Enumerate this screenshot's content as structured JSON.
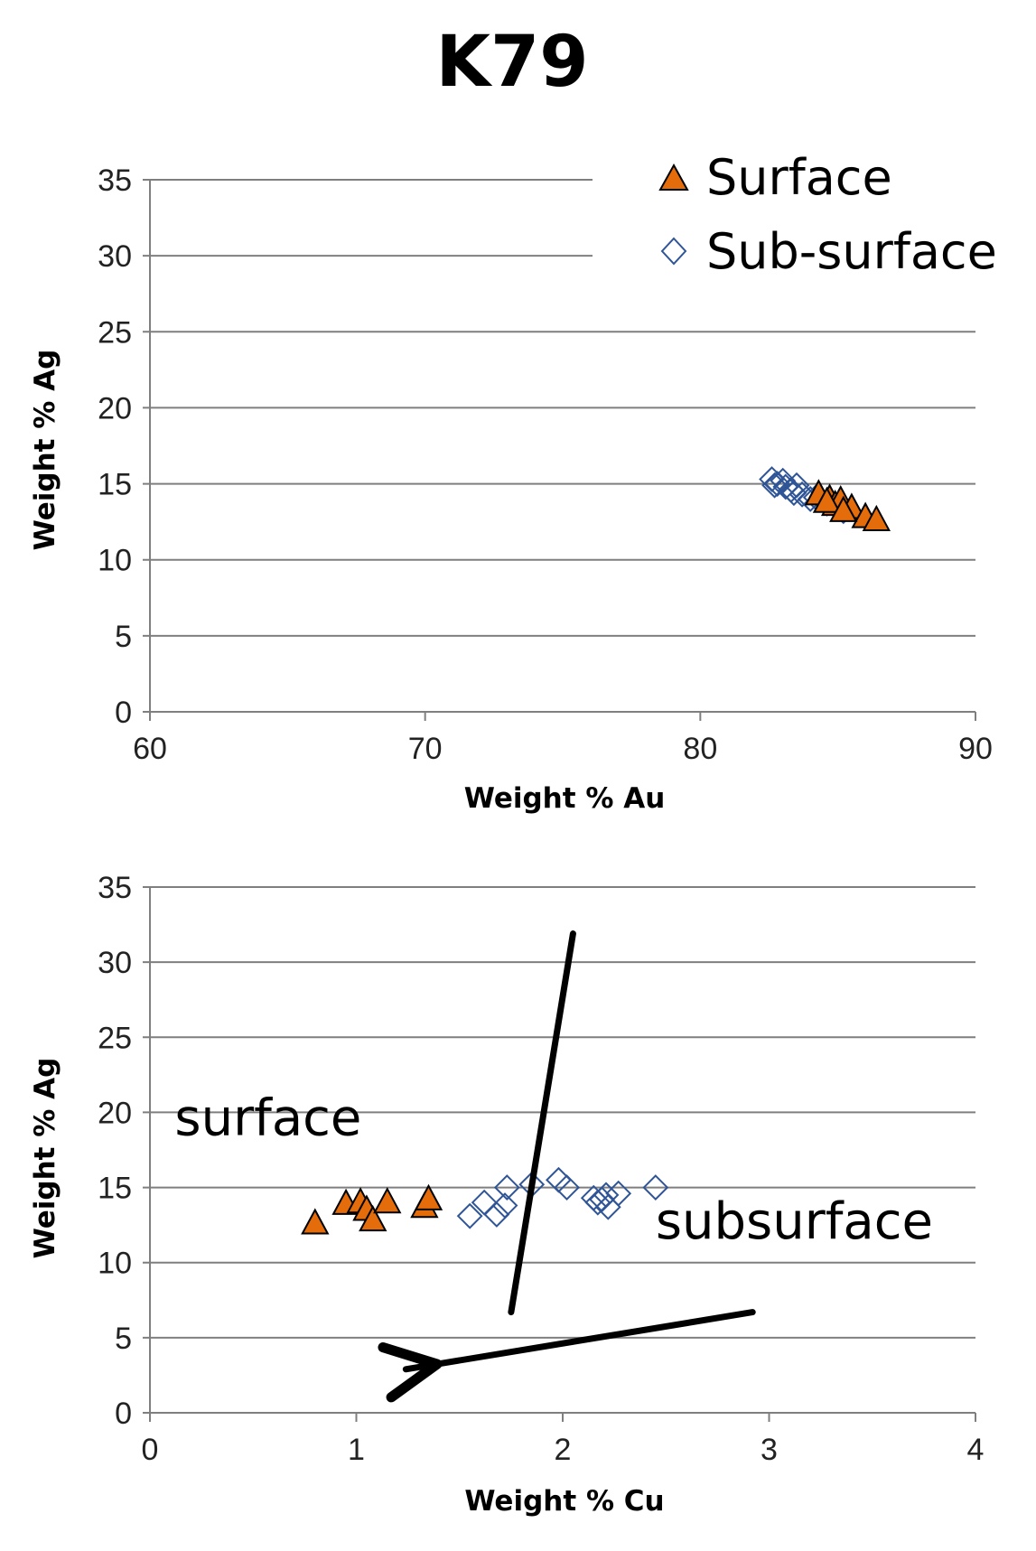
{
  "figure_title": "K79",
  "colors": {
    "surface_fill": "#E46C0A",
    "surface_stroke": "#000000",
    "subsurface_stroke": "#2F5597",
    "grid": "#7F7F7F"
  },
  "legend": {
    "placement": "top-right",
    "items": [
      {
        "label": "Surface",
        "marker": "triangle"
      },
      {
        "label": "Sub-surface",
        "marker": "diamond"
      }
    ]
  },
  "chart_data": [
    {
      "type": "scatter",
      "xlabel": "Weight % Au",
      "ylabel": "Weight % Ag",
      "xlim": [
        60,
        90
      ],
      "ylim": [
        0,
        35
      ],
      "xticks": [
        "60",
        "70",
        "80",
        "90"
      ],
      "yticks": [
        "0",
        "5",
        "10",
        "15",
        "20",
        "25",
        "30",
        "35"
      ],
      "grid": true,
      "series": [
        {
          "name": "Surface",
          "marker": "triangle",
          "x": [
            84.3,
            84.7,
            84.9,
            85.1,
            85.5,
            86.0,
            86.4,
            84.6,
            85.2
          ],
          "y": [
            14.3,
            14.0,
            13.6,
            13.9,
            13.4,
            12.8,
            12.6,
            13.8,
            13.2
          ]
        },
        {
          "name": "Sub-surface",
          "marker": "diamond",
          "x": [
            82.6,
            82.8,
            83.0,
            83.1,
            83.3,
            83.4,
            83.5,
            83.7,
            84.0,
            84.2,
            84.6,
            85.2,
            82.7
          ],
          "y": [
            15.3,
            15.0,
            15.2,
            14.8,
            14.6,
            14.4,
            14.9,
            14.3,
            14.0,
            14.1,
            13.7,
            13.2,
            14.9
          ]
        }
      ]
    },
    {
      "type": "scatter",
      "xlabel": "Weight % Cu",
      "ylabel": "Weight % Ag",
      "xlim": [
        0,
        4
      ],
      "ylim": [
        0,
        35
      ],
      "xticks": [
        "0",
        "1",
        "2",
        "3",
        "4"
      ],
      "yticks": [
        "0",
        "5",
        "10",
        "15",
        "20",
        "25",
        "30",
        "35"
      ],
      "grid": true,
      "series": [
        {
          "name": "Surface",
          "marker": "triangle",
          "x": [
            0.8,
            0.95,
            1.02,
            1.05,
            1.08,
            1.15,
            1.33,
            1.35
          ],
          "y": [
            12.6,
            13.9,
            14.0,
            13.5,
            12.8,
            14.0,
            13.7,
            14.2
          ]
        },
        {
          "name": "Sub-surface",
          "marker": "diamond",
          "x": [
            1.55,
            1.62,
            1.68,
            1.72,
            1.73,
            1.85,
            1.98,
            2.02,
            2.15,
            2.17,
            2.19,
            2.21,
            2.22,
            2.27,
            2.45
          ],
          "y": [
            13.1,
            14.0,
            13.2,
            13.8,
            15.0,
            15.2,
            15.5,
            15.0,
            14.3,
            14.0,
            14.2,
            14.5,
            13.7,
            14.6,
            15.0
          ]
        }
      ],
      "annotations": [
        {
          "text": "surface",
          "x": 0.12,
          "y": 18.5
        },
        {
          "text": "subsurface",
          "x": 2.45,
          "y": 11.6
        }
      ],
      "arrows": [
        {
          "from": [
            1.75,
            6.7
          ],
          "to": [
            2.05,
            31.9
          ],
          "head": false
        },
        {
          "from": [
            2.92,
            6.7
          ],
          "to": [
            1.24,
            2.9
          ],
          "head": true
        }
      ]
    }
  ]
}
